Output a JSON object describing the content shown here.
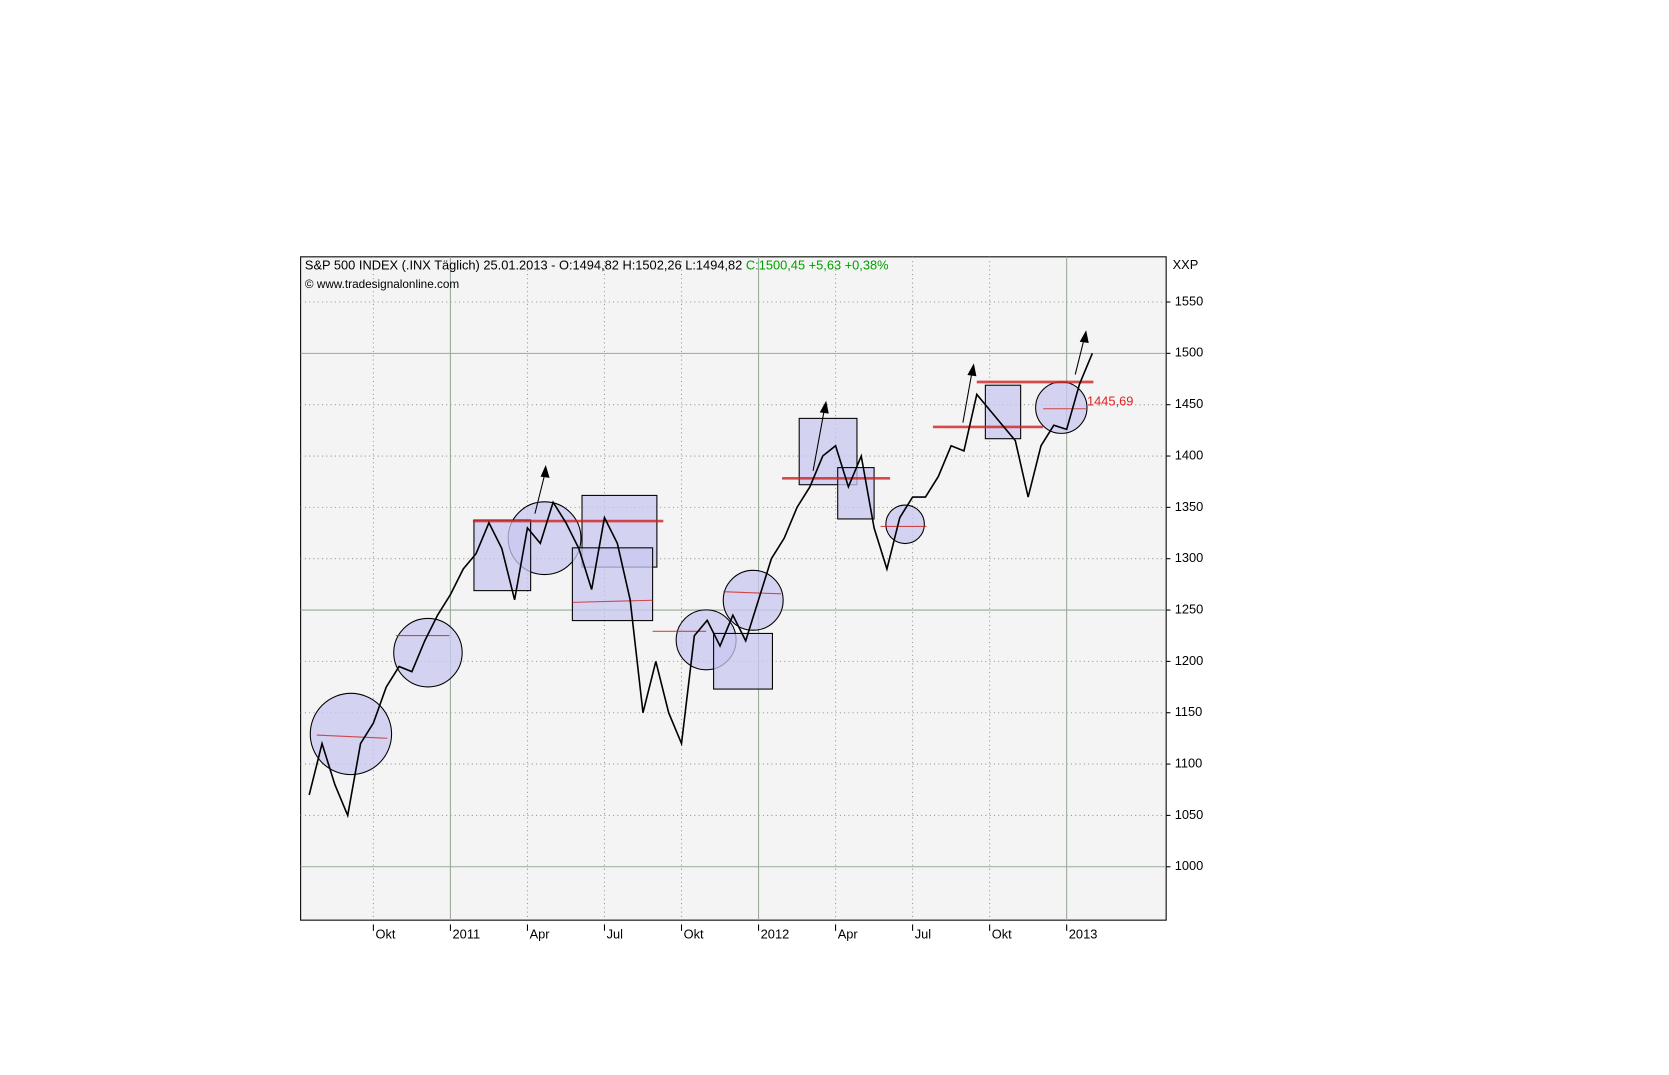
{
  "chart_data": {
    "type": "line",
    "title": "S&P 500 INDEX (.INX  Täglich) 25.01.2013 - O:1494,82 H:1502,26 L:1494,82",
    "subtitle": "C:1500,45 +5,63 +0,38%",
    "source": "© www.tradesignalonline.com",
    "axis_label": "XXP",
    "price_label": "1445,69",
    "categories": [
      null,
      null,
      null,
      null,
      null,
      "Okt",
      null,
      null,
      null,
      null,
      null,
      "2011",
      null,
      null,
      null,
      null,
      null,
      "Apr",
      null,
      null,
      null,
      null,
      null,
      "Jul",
      null,
      null,
      null,
      null,
      null,
      "Okt",
      null,
      null,
      null,
      null,
      null,
      "2012",
      null,
      null,
      null,
      null,
      null,
      "Apr",
      null,
      null,
      null,
      null,
      null,
      "Jul",
      null,
      null,
      null,
      null,
      null,
      "Okt",
      null,
      null,
      null,
      null,
      null,
      "2013",
      null,
      null
    ],
    "series": [
      {
        "name": "S&P 500 INDEX",
        "color": "#000000",
        "values": [
          1070,
          1120,
          1080,
          1050,
          1120,
          1140,
          1175,
          1195,
          1190,
          1220,
          1245,
          1265,
          1290,
          1305,
          1335,
          1310,
          1260,
          1330,
          1315,
          1355,
          1335,
          1310,
          1270,
          1340,
          1315,
          1260,
          1150,
          1200,
          1150,
          1120,
          1225,
          1240,
          1215,
          1245,
          1220,
          1260,
          1300,
          1320,
          1350,
          1370,
          1400,
          1410,
          1370,
          1400,
          1330,
          1290,
          1340,
          1360,
          1360,
          1380,
          1410,
          1405,
          1460,
          1445,
          1430,
          1415,
          1360,
          1410,
          1430,
          1426,
          1470,
          1500
        ]
      }
    ],
    "ylim": [
      948,
      1594
    ],
    "yticks": [
      1000,
      1050,
      1100,
      1150,
      1200,
      1250,
      1300,
      1350,
      1400,
      1450,
      1500,
      1550
    ],
    "grid": true
  }
}
